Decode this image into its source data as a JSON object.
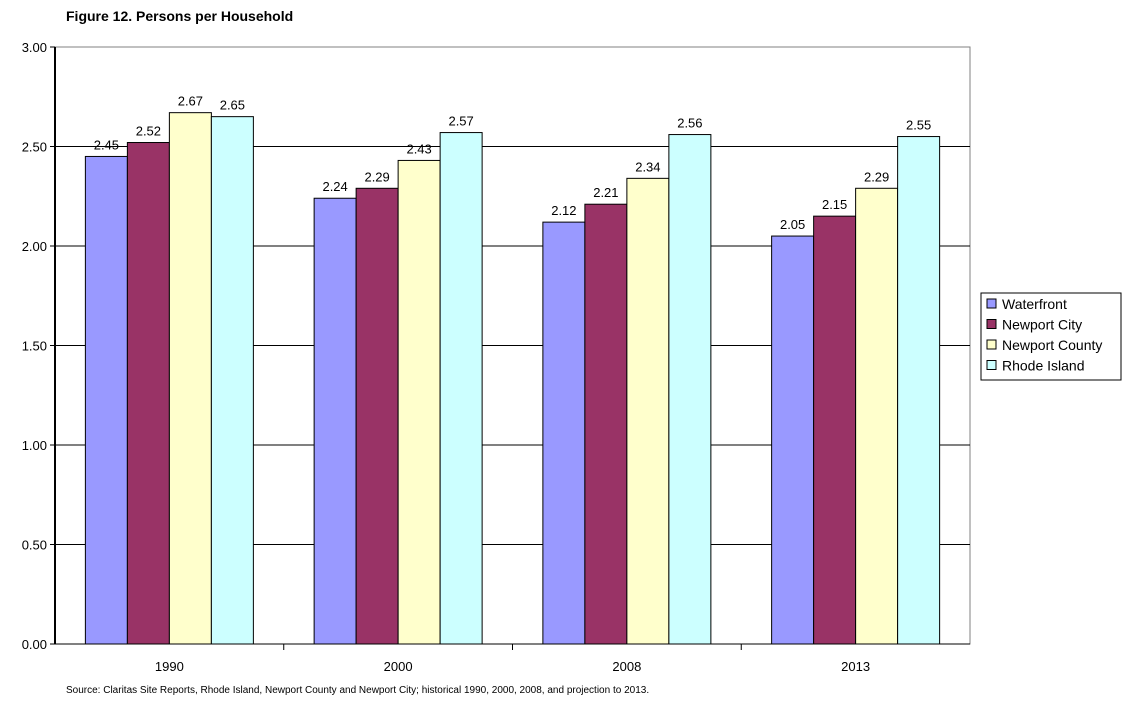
{
  "figure": {
    "title": "Figure 12.  Persons per Household",
    "source": "Source:  Claritas Site Reports, Rhode Island, Newport County and Newport City; historical 1990, 2000, 2008, and projection to 2013."
  },
  "chart_data": {
    "type": "bar",
    "title": "Figure 12.  Persons per Household",
    "xlabel": "",
    "ylabel": "",
    "ylim": [
      0,
      3
    ],
    "yticks": [
      "0.00",
      "0.50",
      "1.00",
      "1.50",
      "2.00",
      "2.50",
      "3.00"
    ],
    "grid": true,
    "legend_position": "right",
    "categories": [
      "1990",
      "2000",
      "2008",
      "2013"
    ],
    "series": [
      {
        "name": "Waterfront",
        "color": "#9999ff",
        "values": [
          2.45,
          2.24,
          2.12,
          2.05
        ],
        "labels": [
          "2.45",
          "2.24",
          "2.12",
          "2.05"
        ]
      },
      {
        "name": "Newport City",
        "color": "#993366",
        "values": [
          2.52,
          2.29,
          2.21,
          2.15
        ],
        "labels": [
          "2.52",
          "2.29",
          "2.21",
          "2.15"
        ]
      },
      {
        "name": "Newport County",
        "color": "#ffffcc",
        "values": [
          2.67,
          2.43,
          2.34,
          2.29
        ],
        "labels": [
          "2.67",
          "2.43",
          "2.34",
          "2.29"
        ]
      },
      {
        "name": "Rhode Island",
        "color": "#ccffff",
        "values": [
          2.65,
          2.57,
          2.56,
          2.55
        ],
        "labels": [
          "2.65",
          "2.57",
          "2.56",
          "2.55"
        ]
      }
    ]
  }
}
